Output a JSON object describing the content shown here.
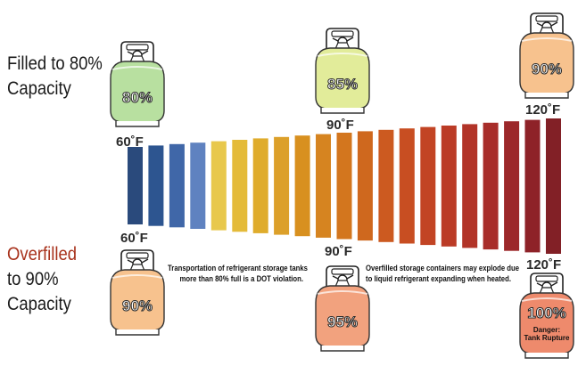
{
  "labels": {
    "top_line1": "Filled to 80%",
    "top_line2": "Capacity",
    "bottom_line1": "Overfilled",
    "bottom_line2": "to 90%",
    "bottom_line3": "Capacity"
  },
  "temps": {
    "top_left": "60˚F",
    "top_mid": "90˚F",
    "top_right": "120˚F",
    "bottom_left": "60˚F",
    "bottom_mid": "90˚F",
    "bottom_right": "120˚F"
  },
  "notes": {
    "dot_line1": "Transportation of refrigerant storage tanks",
    "dot_line2": "more than 80% full is a DOT violation.",
    "explode_line1": "Overfilled storage containers may explode due",
    "explode_line2": "to liquid refrigerant expanding when heated."
  },
  "tanks": {
    "top_left": {
      "pct": "80%",
      "color": "#b8e0a0"
    },
    "top_mid": {
      "pct": "85%",
      "color": "#e2ec9a"
    },
    "top_right": {
      "pct": "90%",
      "color": "#f7c28e"
    },
    "bottom_left": {
      "pct": "90%",
      "color": "#f7c28e"
    },
    "bottom_mid": {
      "pct": "95%",
      "color": "#f2a27e"
    },
    "bottom_right": {
      "pct": "100%",
      "color": "#ee8a6c",
      "danger_line1": "Danger:",
      "danger_line2": "Tank Rupture"
    }
  },
  "bar_colors": [
    "#2a4a7c",
    "#2d5590",
    "#4067a8",
    "#5f82c0",
    "#e8c84c",
    "#e4bb3a",
    "#dfac2c",
    "#dca02a",
    "#d8901f",
    "#d68420",
    "#d3761e",
    "#cf681e",
    "#cc5a20",
    "#c84e22",
    "#c24424",
    "#bb3b26",
    "#b23428",
    "#a82d2a",
    "#9c282a",
    "#8e2228",
    "#822026"
  ]
}
